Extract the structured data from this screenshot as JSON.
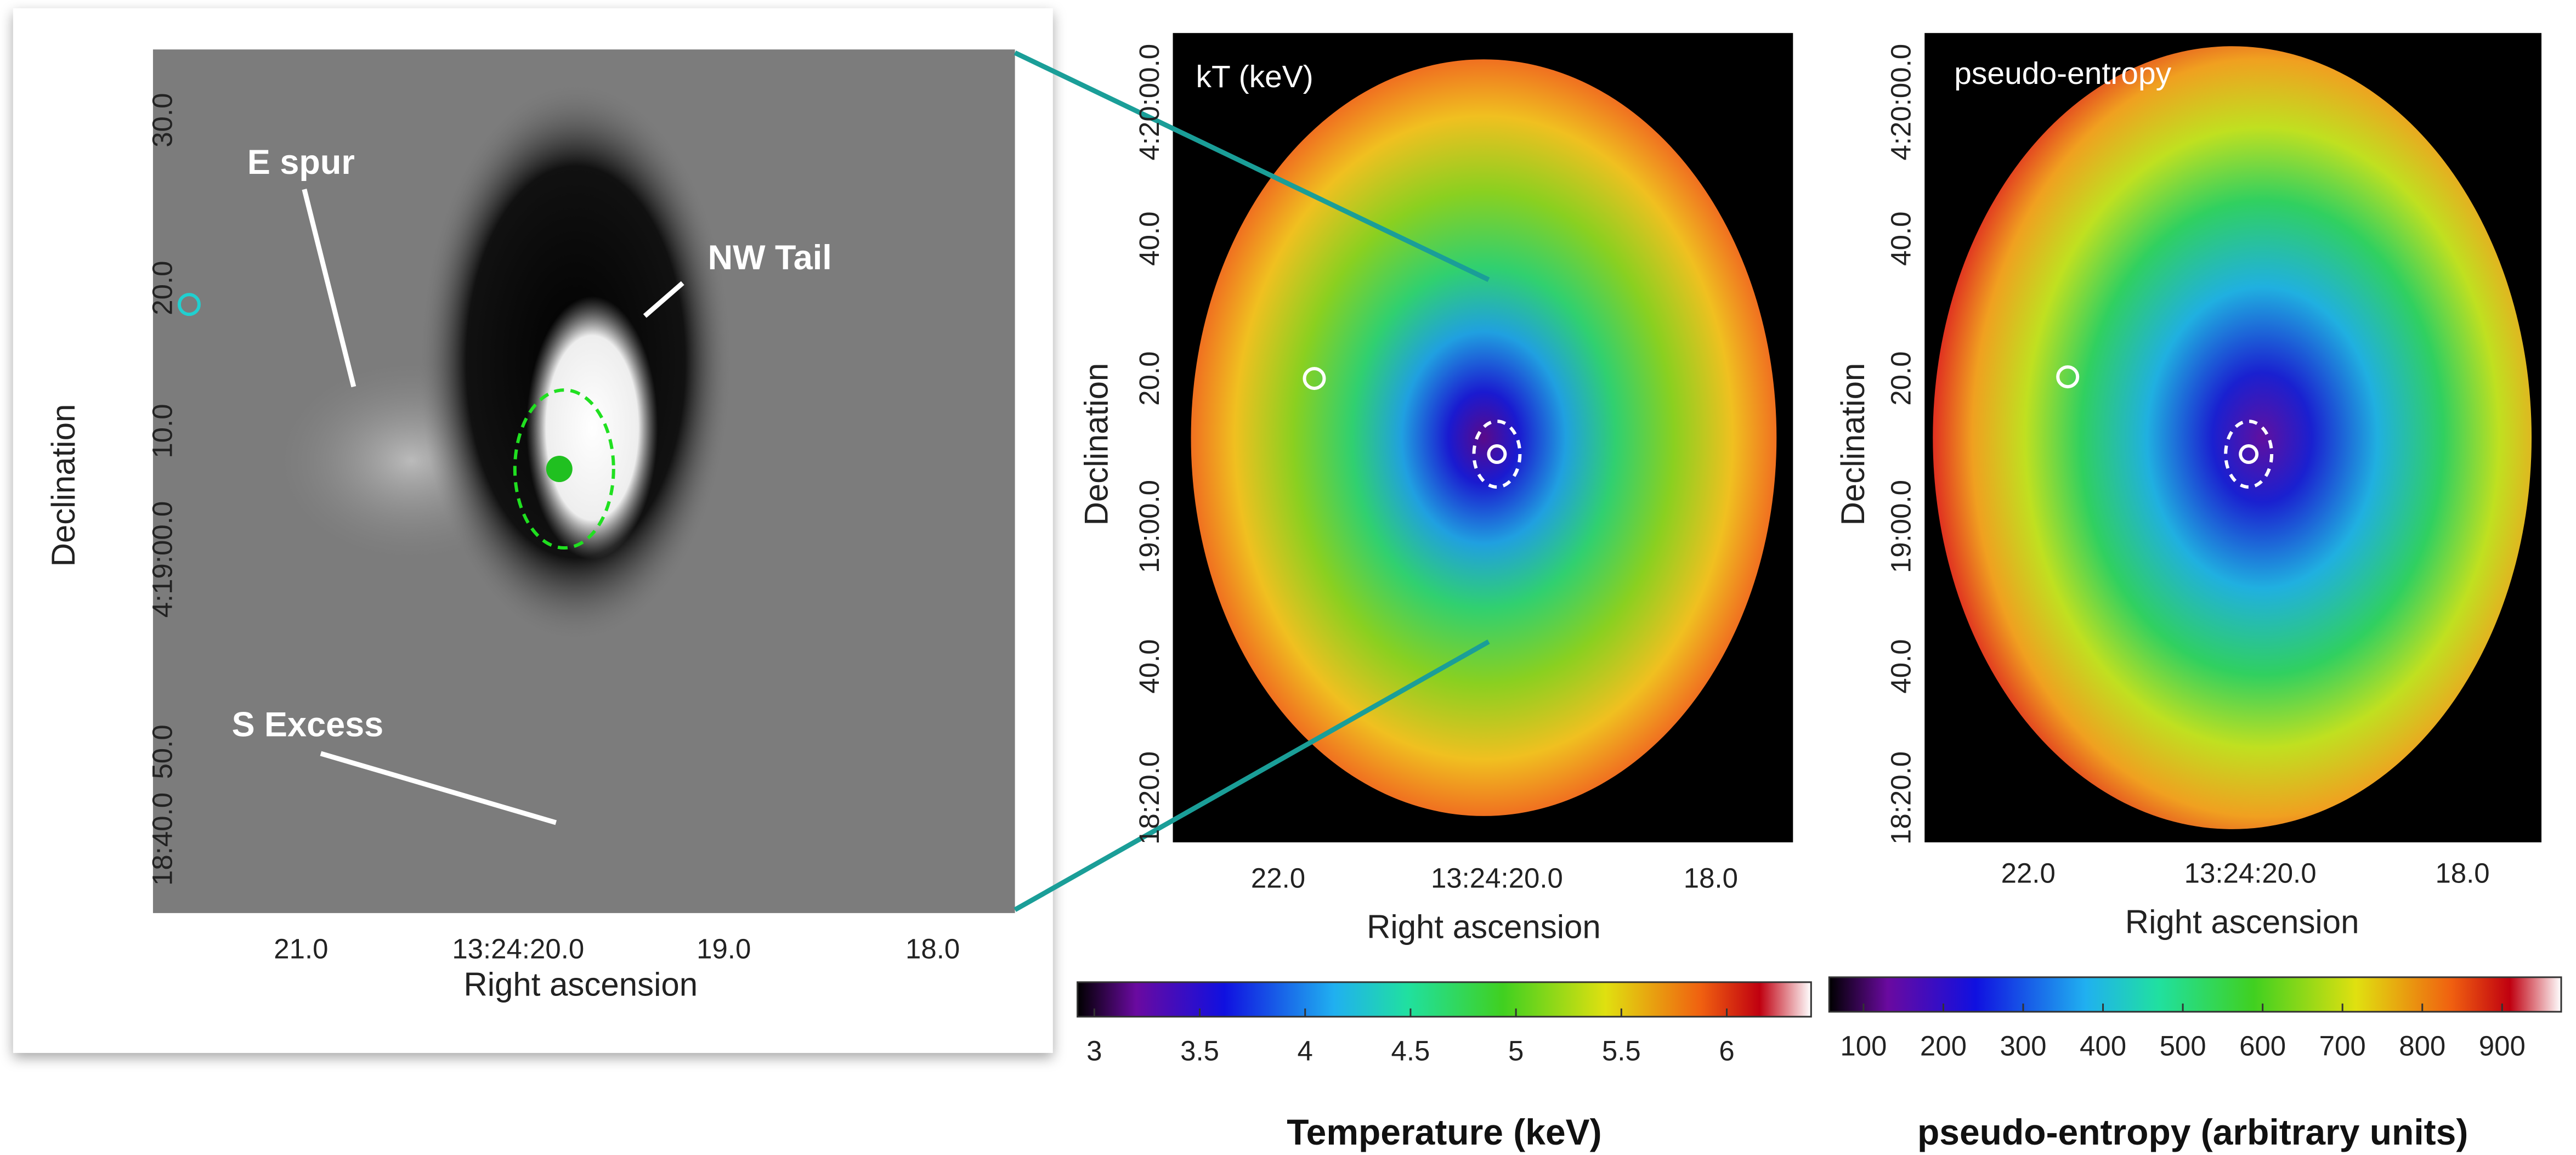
{
  "panels": [
    {
      "x_axis_label": "Right ascension",
      "y_axis_label": "Declination",
      "xticks": [
        "21.0",
        "13:24:20.0",
        "19.0",
        "18.0"
      ],
      "yticks": [
        "30.0",
        "20.0",
        "10.0",
        "4:19:00.0",
        "50.0",
        "18:40.0"
      ],
      "annotations": [
        "E spur",
        "NW Tail",
        "S Excess"
      ]
    },
    {
      "title": "kT (keV)",
      "x_axis_label": "Right ascension",
      "y_axis_label": "Declination",
      "xticks": [
        "22.0",
        "13:24:20.0",
        "18.0"
      ],
      "yticks": [
        "4:20:00.0",
        "40.0",
        "20.0",
        "19:00.0",
        "40.0",
        "18:20.0"
      ]
    },
    {
      "title": "pseudo-entropy",
      "x_axis_label": "Right ascension",
      "y_axis_label": "Declination",
      "xticks": [
        "22.0",
        "13:24:20.0",
        "18.0"
      ],
      "yticks": [
        "4:20:00.0",
        "40.0",
        "20.0",
        "19:00.0",
        "40.0",
        "18:20.0"
      ]
    }
  ],
  "colorbars": [
    {
      "label": "Temperature (keV)",
      "lim": [
        2.92,
        6.4
      ],
      "ticks": [
        3,
        3.5,
        4,
        4.5,
        5,
        5.5,
        6
      ]
    },
    {
      "label": "pseudo-entropy (arbitrary units)",
      "lim": [
        57,
        974
      ],
      "ticks": [
        100,
        200,
        300,
        400,
        500,
        600,
        700,
        800,
        900
      ]
    }
  ]
}
